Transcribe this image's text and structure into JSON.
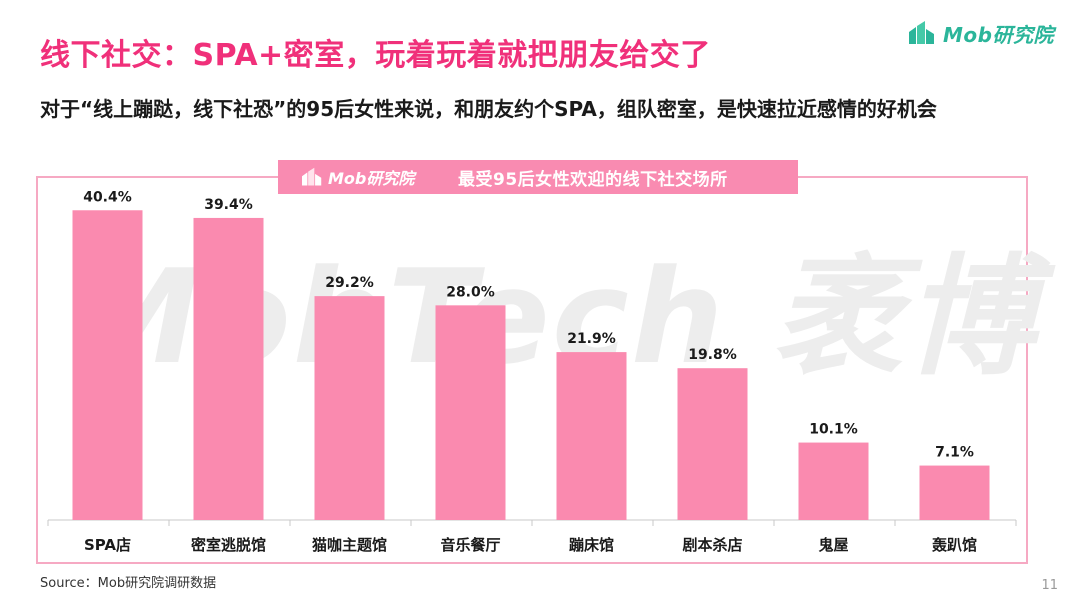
{
  "header": {
    "title": "线下社交：SPA+密室，玩着玩着就把朋友给交了",
    "subtitle": "对于“线上蹦跶，线下社恐”的95后女性来说，和朋友约个SPA，组队密室，是快速拉近感情的好机会",
    "brand": "Mob研究院"
  },
  "chart_header": {
    "logo": "Mob研究院",
    "title": "最受95后女性欢迎的线下社交场所"
  },
  "watermark": "MobTech 袤博",
  "chart_data": {
    "type": "bar",
    "title": "最受95后女性欢迎的线下社交场所",
    "categories": [
      "SPA店",
      "密室逃脱馆",
      "猫咖主题馆",
      "音乐餐厅",
      "蹦床馆",
      "剧本杀店",
      "鬼屋",
      "轰趴馆"
    ],
    "values": [
      40.4,
      39.4,
      29.2,
      28.0,
      21.9,
      19.8,
      10.1,
      7.1
    ],
    "data_labels": [
      "40.4%",
      "39.4%",
      "29.2%",
      "28.0%",
      "21.9%",
      "19.8%",
      "10.1%",
      "7.1%"
    ],
    "ylim": [
      0,
      45
    ],
    "grid": false,
    "legend": "none",
    "bar_color": "#fa8aaf",
    "axis_color": "#c8c8c8"
  },
  "footer": {
    "source": "Source：Mob研究院调研数据",
    "page": "11"
  },
  "colors": {
    "title": "#f0307a",
    "brand": "#2bb59a",
    "panel_border": "#f6a9c3",
    "header_bg": "#f98bb1"
  }
}
